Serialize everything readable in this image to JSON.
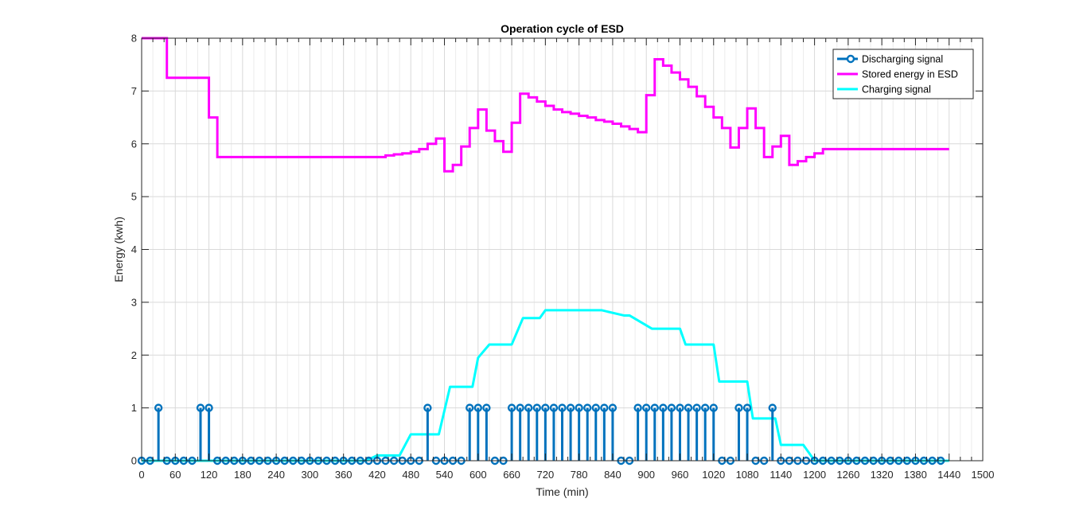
{
  "chart_data": {
    "type": "line",
    "title": "Operation cycle of ESD",
    "xlabel": "Time (min)",
    "ylabel": "Energy (kwh)",
    "xlim": [
      0,
      1500
    ],
    "ylim": [
      0,
      8
    ],
    "xticks": [
      0,
      60,
      120,
      180,
      240,
      300,
      360,
      420,
      480,
      540,
      600,
      660,
      720,
      780,
      840,
      900,
      960,
      1020,
      1080,
      1140,
      1200,
      1260,
      1320,
      1380,
      1440,
      1500
    ],
    "yticks": [
      0,
      1,
      2,
      3,
      4,
      5,
      6,
      7,
      8
    ],
    "x_minor_step": 20,
    "grid": true,
    "legend_location": "top-right",
    "colors": {
      "discharging": "#0072BD",
      "stored": "#FF00FF",
      "charging": "#00FFFF"
    },
    "legend": [
      {
        "key": "discharging",
        "label": "Discharging signal"
      },
      {
        "key": "stored",
        "label": "Stored energy in ESD"
      },
      {
        "key": "charging",
        "label": "Charging signal"
      }
    ],
    "series": [
      {
        "name": "Discharging signal",
        "key": "discharging",
        "kind": "stem",
        "x": [
          0,
          15,
          30,
          45,
          60,
          75,
          90,
          105,
          120,
          135,
          150,
          165,
          180,
          195,
          210,
          225,
          240,
          255,
          270,
          285,
          300,
          315,
          330,
          345,
          360,
          375,
          390,
          405,
          420,
          435,
          450,
          465,
          480,
          495,
          510,
          525,
          540,
          555,
          570,
          585,
          600,
          615,
          630,
          645,
          660,
          675,
          690,
          705,
          720,
          735,
          750,
          765,
          780,
          795,
          810,
          825,
          840,
          855,
          870,
          885,
          900,
          915,
          930,
          945,
          960,
          975,
          990,
          1005,
          1020,
          1035,
          1050,
          1065,
          1080,
          1095,
          1110,
          1125,
          1140,
          1155,
          1170,
          1185,
          1200,
          1215,
          1230,
          1245,
          1260,
          1275,
          1290,
          1305,
          1320,
          1335,
          1350,
          1365,
          1380,
          1395,
          1410,
          1425
        ],
        "values": [
          0,
          0,
          1,
          0,
          0,
          0,
          0,
          1,
          1,
          0,
          0,
          0,
          0,
          0,
          0,
          0,
          0,
          0,
          0,
          0,
          0,
          0,
          0,
          0,
          0,
          0,
          0,
          0,
          0,
          0,
          0,
          0,
          0,
          0,
          1,
          0,
          0,
          0,
          0,
          1,
          1,
          1,
          0,
          0,
          1,
          1,
          1,
          1,
          1,
          1,
          1,
          1,
          1,
          1,
          1,
          1,
          1,
          0,
          0,
          1,
          1,
          1,
          1,
          1,
          1,
          1,
          1,
          1,
          1,
          0,
          0,
          1,
          1,
          0,
          0,
          1,
          0,
          0,
          0,
          0,
          0,
          0,
          0,
          0,
          0,
          0,
          0,
          0,
          0,
          0,
          0,
          0,
          0,
          0,
          0,
          0
        ]
      },
      {
        "name": "Stored energy in ESD",
        "key": "stored",
        "kind": "stairs",
        "x": [
          0,
          15,
          30,
          45,
          60,
          75,
          90,
          105,
          120,
          135,
          150,
          165,
          180,
          195,
          210,
          225,
          240,
          255,
          270,
          285,
          300,
          315,
          330,
          345,
          360,
          375,
          390,
          405,
          420,
          435,
          450,
          465,
          480,
          495,
          510,
          525,
          540,
          555,
          570,
          585,
          600,
          615,
          630,
          645,
          660,
          675,
          690,
          705,
          720,
          735,
          750,
          765,
          780,
          795,
          810,
          825,
          840,
          855,
          870,
          885,
          900,
          915,
          930,
          945,
          960,
          975,
          990,
          1005,
          1020,
          1035,
          1050,
          1065,
          1080,
          1095,
          1110,
          1125,
          1140,
          1155,
          1170,
          1185,
          1200,
          1215,
          1230,
          1245,
          1260,
          1275,
          1290,
          1305,
          1320,
          1335,
          1350,
          1365,
          1380,
          1395,
          1410,
          1425,
          1440
        ],
        "values": [
          8,
          8,
          8,
          7.25,
          7.25,
          7.25,
          7.25,
          7.25,
          6.5,
          5.75,
          5.75,
          5.75,
          5.75,
          5.75,
          5.75,
          5.75,
          5.75,
          5.75,
          5.75,
          5.75,
          5.75,
          5.75,
          5.75,
          5.75,
          5.75,
          5.75,
          5.75,
          5.75,
          5.75,
          5.78,
          5.8,
          5.82,
          5.85,
          5.9,
          6.0,
          6.1,
          5.48,
          5.6,
          5.95,
          6.3,
          6.65,
          6.25,
          6.05,
          5.85,
          6.4,
          6.95,
          6.88,
          6.8,
          6.72,
          6.65,
          6.6,
          6.57,
          6.53,
          6.5,
          6.45,
          6.42,
          6.38,
          6.33,
          6.28,
          6.22,
          6.92,
          7.6,
          7.48,
          7.35,
          7.22,
          7.08,
          6.9,
          6.7,
          6.5,
          6.3,
          5.93,
          6.3,
          6.67,
          6.3,
          5.75,
          5.95,
          6.15,
          5.6,
          5.67,
          5.75,
          5.82,
          5.9,
          5.9,
          5.9,
          5.9,
          5.9,
          5.9,
          5.9,
          5.9,
          5.9,
          5.9,
          5.9,
          5.9,
          5.9,
          5.9,
          5.9,
          5.9
        ]
      },
      {
        "name": "Charging signal",
        "key": "charging",
        "kind": "line",
        "x": [
          0,
          120,
          130,
          400,
          420,
          460,
          480,
          530,
          550,
          590,
          600,
          620,
          660,
          680,
          710,
          720,
          740,
          810,
          820,
          860,
          870,
          910,
          960,
          970,
          990,
          1020,
          1030,
          1070,
          1080,
          1090,
          1120,
          1130,
          1140,
          1170,
          1180,
          1190,
          1200,
          1440
        ],
        "values": [
          0,
          0,
          0,
          0,
          0.1,
          0.1,
          0.5,
          0.5,
          1.4,
          1.4,
          1.95,
          2.2,
          2.2,
          2.7,
          2.7,
          2.85,
          2.85,
          2.85,
          2.85,
          2.75,
          2.75,
          2.5,
          2.5,
          2.2,
          2.2,
          2.2,
          1.5,
          1.5,
          1.5,
          0.8,
          0.8,
          0.8,
          0.3,
          0.3,
          0.3,
          0.15,
          0,
          0
        ]
      }
    ]
  }
}
